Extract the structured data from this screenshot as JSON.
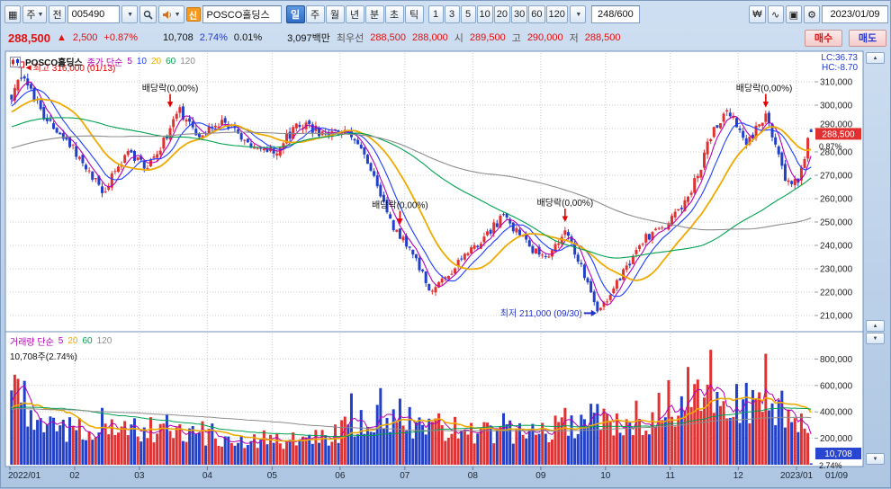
{
  "icons": {
    "grid": "▦",
    "chevron_down": "▼",
    "up_arrow": "▲",
    "down_arrow": "▼",
    "wave": "∿",
    "won": "₩",
    "save": "▣",
    "gear": "⚙"
  },
  "toolbar": {
    "cycle_value": "주",
    "prev_label": "전",
    "code_value": "005490",
    "new_badge": "신",
    "name_value": "POSCO홀딩스",
    "period_buttons": [
      {
        "label": "일",
        "active": true
      },
      {
        "label": "주",
        "active": false
      },
      {
        "label": "월",
        "active": false
      },
      {
        "label": "년",
        "active": false
      },
      {
        "label": "분",
        "active": false
      },
      {
        "label": "초",
        "active": false
      },
      {
        "label": "틱",
        "active": false
      }
    ],
    "interval_buttons": [
      {
        "label": "1"
      },
      {
        "label": "3"
      },
      {
        "label": "5"
      },
      {
        "label": "10"
      },
      {
        "label": "20"
      },
      {
        "label": "30"
      },
      {
        "label": "60"
      },
      {
        "label": "120"
      }
    ],
    "count_display": "248/600",
    "date_value": "2023/01/09"
  },
  "infobar": {
    "price": "288,500",
    "arrow": "▲",
    "change": "2,500",
    "change_pct": "+0.87%",
    "volume": "10,708",
    "volume_pct": "2.74%",
    "turnover": "0.01%",
    "amount": "3,097백만",
    "best_label": "최우선",
    "best_ask": "288,500",
    "best_bid": "288,000",
    "open_label": "시",
    "open": "289,500",
    "high_label": "고",
    "high": "290,000",
    "low_label": "저",
    "low": "288,500",
    "buy_label": "매수",
    "sell_label": "매도"
  },
  "price_pane": {
    "title": "POSCO홀딩스",
    "legend_label": "종가 단순",
    "ma_items": [
      {
        "label": "5",
        "period": 5,
        "color": "#b400b4"
      },
      {
        "label": "10",
        "period": 10,
        "color": "#1e3cff"
      },
      {
        "label": "20",
        "period": 20,
        "color": "#edaa00"
      },
      {
        "label": "60",
        "period": 60,
        "color": "#00a050"
      },
      {
        "label": "120",
        "period": 120,
        "color": "#8c8c8c"
      }
    ],
    "lc": "LC:36.73",
    "hc": "HC:-8.70",
    "badge": "288,500",
    "badge_pct": "0.87%"
  },
  "volume_pane": {
    "legend_label": "거래량 단순",
    "ma_items": [
      {
        "label": "5",
        "period": 5,
        "color": "#b400b4"
      },
      {
        "label": "20",
        "period": 20,
        "color": "#edaa00"
      },
      {
        "label": "60",
        "period": 60,
        "color": "#00a050"
      },
      {
        "label": "120",
        "period": 120,
        "color": "#8c8c8c"
      }
    ],
    "current_line": "10,708주(2.74%)",
    "badge": "10,708",
    "badge_pct": "2.74%"
  },
  "chart_data": {
    "type": "candlestick",
    "symbol": "POSCO홀딩스",
    "code": "005490",
    "timeframe": "daily",
    "visible_range": "2022/01 - 2023/01/09",
    "num_candles": 248,
    "pre_days": 120,
    "seed": 20230109,
    "price_axis": {
      "min": 210000,
      "max": 310000,
      "tick_step": 10000
    },
    "volume_axis": {
      "ticks": [
        200000,
        400000,
        600000,
        800000
      ]
    },
    "close_keypoints": [
      [
        -120,
        262000
      ],
      [
        -90,
        272000
      ],
      [
        -60,
        283000
      ],
      [
        -30,
        290000
      ],
      [
        -10,
        296000
      ],
      [
        0,
        303000
      ],
      [
        3,
        312000
      ],
      [
        9,
        298000
      ],
      [
        14,
        289000
      ],
      [
        20,
        280000
      ],
      [
        28,
        262500
      ],
      [
        36,
        281000
      ],
      [
        42,
        272000
      ],
      [
        52,
        297000
      ],
      [
        58,
        287000
      ],
      [
        65,
        294000
      ],
      [
        74,
        283000
      ],
      [
        81,
        280000
      ],
      [
        89,
        292000
      ],
      [
        98,
        287000
      ],
      [
        104,
        290500
      ],
      [
        110,
        276000
      ],
      [
        117,
        250000
      ],
      [
        124,
        236000
      ],
      [
        130,
        219500
      ],
      [
        138,
        233000
      ],
      [
        146,
        243000
      ],
      [
        152,
        253000
      ],
      [
        160,
        239000
      ],
      [
        166,
        234000
      ],
      [
        171,
        246500
      ],
      [
        177,
        227000
      ],
      [
        181,
        211500
      ],
      [
        187,
        224000
      ],
      [
        196,
        243000
      ],
      [
        204,
        251000
      ],
      [
        210,
        263000
      ],
      [
        216,
        286000
      ],
      [
        221,
        300000
      ],
      [
        227,
        283500
      ],
      [
        233,
        296000
      ],
      [
        239,
        269000
      ],
      [
        243,
        266000
      ],
      [
        245,
        277000
      ],
      [
        247,
        288500
      ]
    ],
    "volume_keypoints": [
      [
        0,
        420
      ],
      [
        2,
        620
      ],
      [
        5,
        380
      ],
      [
        10,
        300
      ],
      [
        20,
        280
      ],
      [
        30,
        250
      ],
      [
        40,
        260
      ],
      [
        52,
        300
      ],
      [
        61,
        230
      ],
      [
        70,
        200
      ],
      [
        81,
        190
      ],
      [
        92,
        200
      ],
      [
        100,
        230
      ],
      [
        104,
        300
      ],
      [
        110,
        340
      ],
      [
        117,
        360
      ],
      [
        124,
        330
      ],
      [
        130,
        300
      ],
      [
        138,
        260
      ],
      [
        143,
        240
      ],
      [
        152,
        280
      ],
      [
        160,
        240
      ],
      [
        164,
        260
      ],
      [
        171,
        320
      ],
      [
        177,
        300
      ],
      [
        181,
        400
      ],
      [
        186,
        340
      ],
      [
        196,
        360
      ],
      [
        204,
        420
      ],
      [
        210,
        480
      ],
      [
        216,
        560
      ],
      [
        221,
        520
      ],
      [
        227,
        480
      ],
      [
        233,
        520
      ],
      [
        239,
        420
      ],
      [
        244,
        320
      ],
      [
        247,
        300
      ]
    ],
    "volume_spikes": [
      {
        "idx": 2,
        "v": 650
      },
      {
        "idx": 28,
        "v": 430
      },
      {
        "idx": 105,
        "v": 540
      },
      {
        "idx": 114,
        "v": 580
      },
      {
        "idx": 120,
        "v": 500
      },
      {
        "idx": 171,
        "v": 430
      },
      {
        "idx": 181,
        "v": 460
      },
      {
        "idx": 203,
        "v": 640
      },
      {
        "idx": 209,
        "v": 740
      },
      {
        "idx": 216,
        "v": 870
      },
      {
        "idx": 227,
        "v": 620
      },
      {
        "idx": 233,
        "v": 840
      },
      {
        "idx": 238,
        "v": 560
      }
    ],
    "special": {
      "high": {
        "idx": 3,
        "price": 316000,
        "date": "01/13"
      },
      "low": {
        "idx": 181,
        "price": 211000,
        "date": "09/30"
      },
      "prev_close": 286000,
      "last": {
        "open": 289500,
        "high": 290000,
        "low": 288500,
        "close": 288500
      },
      "last_volume": 10708
    },
    "month_starts": [
      [
        0,
        "2022/01"
      ],
      [
        20,
        "02"
      ],
      [
        40,
        "03"
      ],
      [
        61,
        "04"
      ],
      [
        81,
        "05"
      ],
      [
        102,
        "06"
      ],
      [
        122,
        "07"
      ],
      [
        143,
        "08"
      ],
      [
        164,
        "09"
      ],
      [
        184,
        "10"
      ],
      [
        204,
        "11"
      ],
      [
        225,
        "12"
      ],
      [
        243,
        "2023/01"
      ]
    ],
    "last_date_label": "01/09",
    "annotations": [
      {
        "kind": "high",
        "label": "최고 316,000 (01/13)",
        "idx": 3,
        "price": 316000,
        "color": "#e00000"
      },
      {
        "kind": "exdiv",
        "label": "배당락(0,00%)",
        "idx": 49,
        "price": 299000
      },
      {
        "kind": "exdiv",
        "label": "배당락(0,00%)",
        "idx": 120,
        "price": 249000
      },
      {
        "kind": "exdiv",
        "label": "배당락(0,00%)",
        "idx": 171,
        "price": 250000
      },
      {
        "kind": "exdiv",
        "label": "배당락(0,00%)",
        "idx": 233,
        "price": 299000
      },
      {
        "kind": "low",
        "label": "최저 211,000 (09/30)",
        "idx": 181,
        "price": 211000,
        "color": "#2233cc"
      }
    ],
    "colors": {
      "up": "#e03232",
      "down": "#2341c8",
      "grid": "#c9c9c9",
      "border": "#7090b8",
      "axis_text": "#222222",
      "badge_price": "#e03030",
      "badge_vol": "#2846d0",
      "exdiv": "#e00000"
    }
  }
}
